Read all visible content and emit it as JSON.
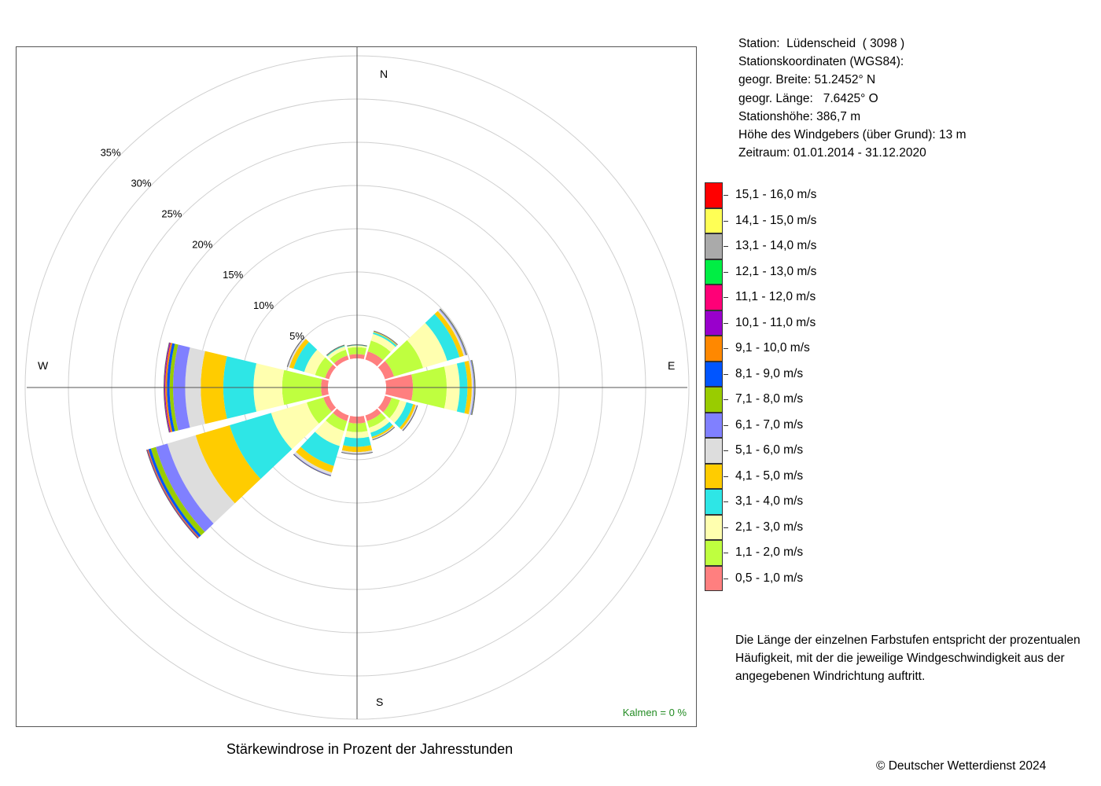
{
  "title": "Stärkewindrose in Prozent der Jahresstunden",
  "copyright": "© Deutscher Wetterdienst  2024",
  "calm": "Kalmen  =  0 %",
  "station_info": [
    "Station:  Lüdenscheid  ( 3098 )",
    "Stationskoordinaten (WGS84):",
    "geogr. Breite: 51.2452° N",
    "geogr. Länge:   7.6425° O",
    "Stationshöhe: 386,7 m",
    "Höhe des Windgebers (über Grund): 13 m",
    "Zeitraum: 01.01.2014 - 31.12.2020"
  ],
  "note": "Die Länge der einzelnen Farbstufen entspricht der prozentualen Häufigkeit, mit der die jeweilige Windgeschwindigkeit aus der angegebenen Windrichtung auftritt.",
  "compass": {
    "n": "N",
    "e": "E",
    "s": "S",
    "w": "W"
  },
  "chart_data": {
    "type": "windrose",
    "title": "Stärkewindrose in Prozent der Jahresstunden",
    "rings": [
      5,
      10,
      15,
      20,
      25,
      30,
      35
    ],
    "ring_labels": [
      "5%",
      "10%",
      "15%",
      "20%",
      "25%",
      "30%",
      "35%"
    ],
    "directions_deg": [
      0,
      30,
      60,
      90,
      120,
      150,
      180,
      210,
      240,
      270,
      300,
      330
    ],
    "speed_classes": [
      {
        "label": "0,5 - 1,0 m/s",
        "color": "#ff7f7f"
      },
      {
        "label": "1,1 - 2,0 m/s",
        "color": "#bfff3f"
      },
      {
        "label": "2,1 - 3,0 m/s",
        "color": "#ffffaf"
      },
      {
        "label": "3,1 - 4,0 m/s",
        "color": "#2ee6e6"
      },
      {
        "label": "4,1 - 5,0 m/s",
        "color": "#ffcc00"
      },
      {
        "label": "5,1 - 6,0 m/s",
        "color": "#dddddd"
      },
      {
        "label": "6,1 - 7,0 m/s",
        "color": "#8080ff"
      },
      {
        "label": "7,1 - 8,0 m/s",
        "color": "#99cc00"
      },
      {
        "label": "8,1 - 9,0 m/s",
        "color": "#0055ff"
      },
      {
        "label": "9,1 - 10,0 m/s",
        "color": "#ff8800"
      },
      {
        "label": "10,1 - 11,0 m/s",
        "color": "#9900cc"
      },
      {
        "label": "11,1 - 12,0 m/s",
        "color": "#ff0077"
      },
      {
        "label": "12,1 - 13,0 m/s",
        "color": "#00ee44"
      },
      {
        "label": "13,1 - 14,0 m/s",
        "color": "#aaaaaa"
      },
      {
        "label": "14,1 - 15,0 m/s",
        "color": "#ffff55"
      },
      {
        "label": "15,1 - 16,0 m/s",
        "color": "#ff0000"
      }
    ],
    "frequencies": [
      [
        0.5,
        0.8,
        0.2,
        0.05,
        0.02,
        0.01,
        0,
        0,
        0,
        0,
        0,
        0,
        0,
        0,
        0,
        0
      ],
      [
        1.0,
        1.3,
        0.8,
        0.2,
        0.08,
        0.04,
        0.02,
        0.01,
        0,
        0,
        0,
        0,
        0,
        0,
        0,
        0
      ],
      [
        1.1,
        3.5,
        2.9,
        1.5,
        0.5,
        0.2,
        0.1,
        0.05,
        0.02,
        0,
        0,
        0,
        0,
        0,
        0,
        0
      ],
      [
        3.1,
        3.9,
        1.5,
        0.9,
        0.5,
        0.2,
        0.1,
        0.05,
        0.02,
        0.01,
        0,
        0,
        0,
        0,
        0,
        0
      ],
      [
        0.8,
        1.0,
        0.8,
        0.8,
        0.3,
        0.15,
        0.05,
        0.02,
        0,
        0,
        0,
        0,
        0,
        0,
        0,
        0
      ],
      [
        0.7,
        0.8,
        0.6,
        0.5,
        0.2,
        0.1,
        0.05,
        0,
        0,
        0,
        0,
        0,
        0,
        0,
        0,
        0
      ],
      [
        0.8,
        1.0,
        0.7,
        1.0,
        0.6,
        0.2,
        0.05,
        0,
        0,
        0,
        0,
        0,
        0,
        0,
        0,
        0
      ],
      [
        0.7,
        1.2,
        1.8,
        2.4,
        0.8,
        0.3,
        0.1,
        0,
        0,
        0,
        0,
        0,
        0,
        0,
        0,
        0
      ],
      [
        0.7,
        2.0,
        4.3,
        5.0,
        4.1,
        3.4,
        1.4,
        0.6,
        0.3,
        0.1,
        0.05,
        0.05,
        0,
        0,
        0,
        0
      ],
      [
        0.8,
        4.5,
        3.3,
        3.5,
        2.6,
        1.8,
        1.4,
        0.4,
        0.3,
        0.2,
        0.1,
        0.05,
        0,
        0,
        0,
        0
      ],
      [
        0.5,
        1.2,
        1.3,
        1.3,
        0.5,
        0.2,
        0.05,
        0,
        0,
        0,
        0,
        0,
        0,
        0,
        0,
        0
      ],
      [
        0.5,
        0.7,
        0.4,
        0.1,
        0.04,
        0.02,
        0,
        0,
        0,
        0,
        0,
        0,
        0,
        0,
        0,
        0
      ]
    ],
    "calm_percent": 0
  }
}
